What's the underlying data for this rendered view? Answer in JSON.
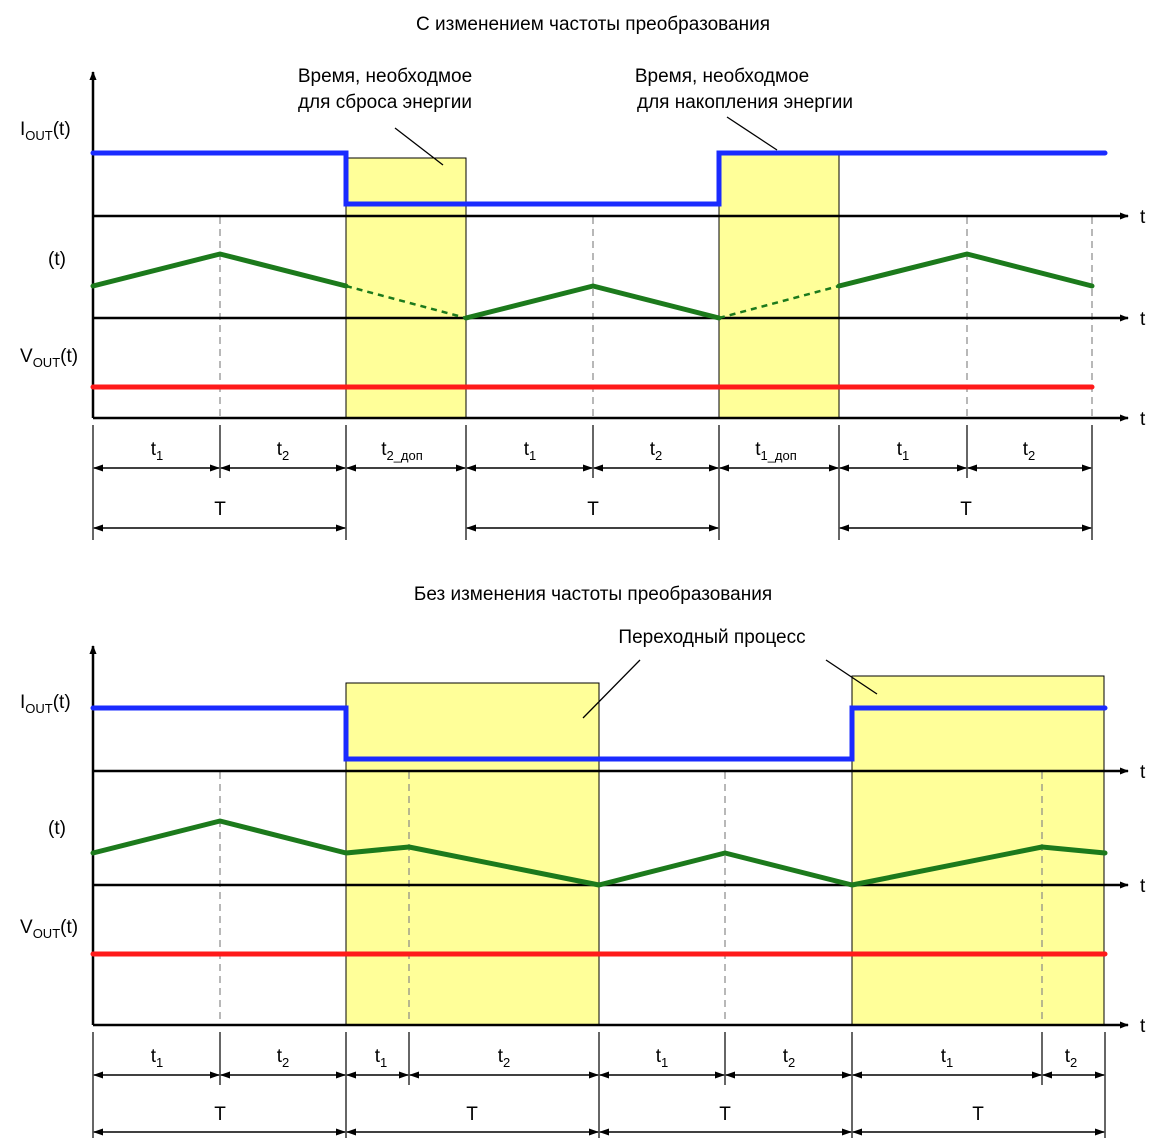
{
  "top": {
    "title": "С изменением частоты преобразования",
    "annotation_left": [
      "Время, необходмое",
      "для сброса энергии"
    ],
    "annotation_right": [
      "Время, необходмое",
      "для накопления энергии"
    ],
    "y_labels": {
      "iout_main": "I",
      "iout_sub": "OUT",
      "iout_tail": "(t)",
      "mid": "(t)",
      "vout_main": "V",
      "vout_sub": "OUT",
      "vout_tail": "(t)"
    },
    "axis_label": "t",
    "intervals": [
      {
        "main": "t",
        "sub": "1"
      },
      {
        "main": "t",
        "sub": "2"
      },
      {
        "main": "t",
        "sub": "2_доп"
      },
      {
        "main": "t",
        "sub": "1"
      },
      {
        "main": "t",
        "sub": "2"
      },
      {
        "main": "t",
        "sub": "1_доп"
      },
      {
        "main": "t",
        "sub": "1"
      },
      {
        "main": "t",
        "sub": "2"
      }
    ],
    "periods": [
      "T",
      "T",
      "T"
    ]
  },
  "bottom": {
    "title": "Без изменения частоты преобразования",
    "annotation": "Переходный процесс",
    "y_labels": {
      "iout_main": "I",
      "iout_sub": "OUT",
      "iout_tail": "(t)",
      "mid": "(t)",
      "vout_main": "V",
      "vout_sub": "OUT",
      "vout_tail": "(t)"
    },
    "axis_label": "t",
    "intervals": [
      {
        "main": "t",
        "sub": "1"
      },
      {
        "main": "t",
        "sub": "2"
      },
      {
        "main": "t",
        "sub": "1"
      },
      {
        "main": "t",
        "sub": "2"
      },
      {
        "main": "t",
        "sub": "1"
      },
      {
        "main": "t",
        "sub": "2"
      },
      {
        "main": "t",
        "sub": "1"
      },
      {
        "main": "t",
        "sub": "2"
      }
    ],
    "periods": [
      "T",
      "T",
      "T",
      "T"
    ]
  },
  "colors": {
    "current": "#1a2bff",
    "ripple": "#1c7a1c",
    "voltage": "#ff1a1a",
    "highlight": "#ffff99"
  }
}
